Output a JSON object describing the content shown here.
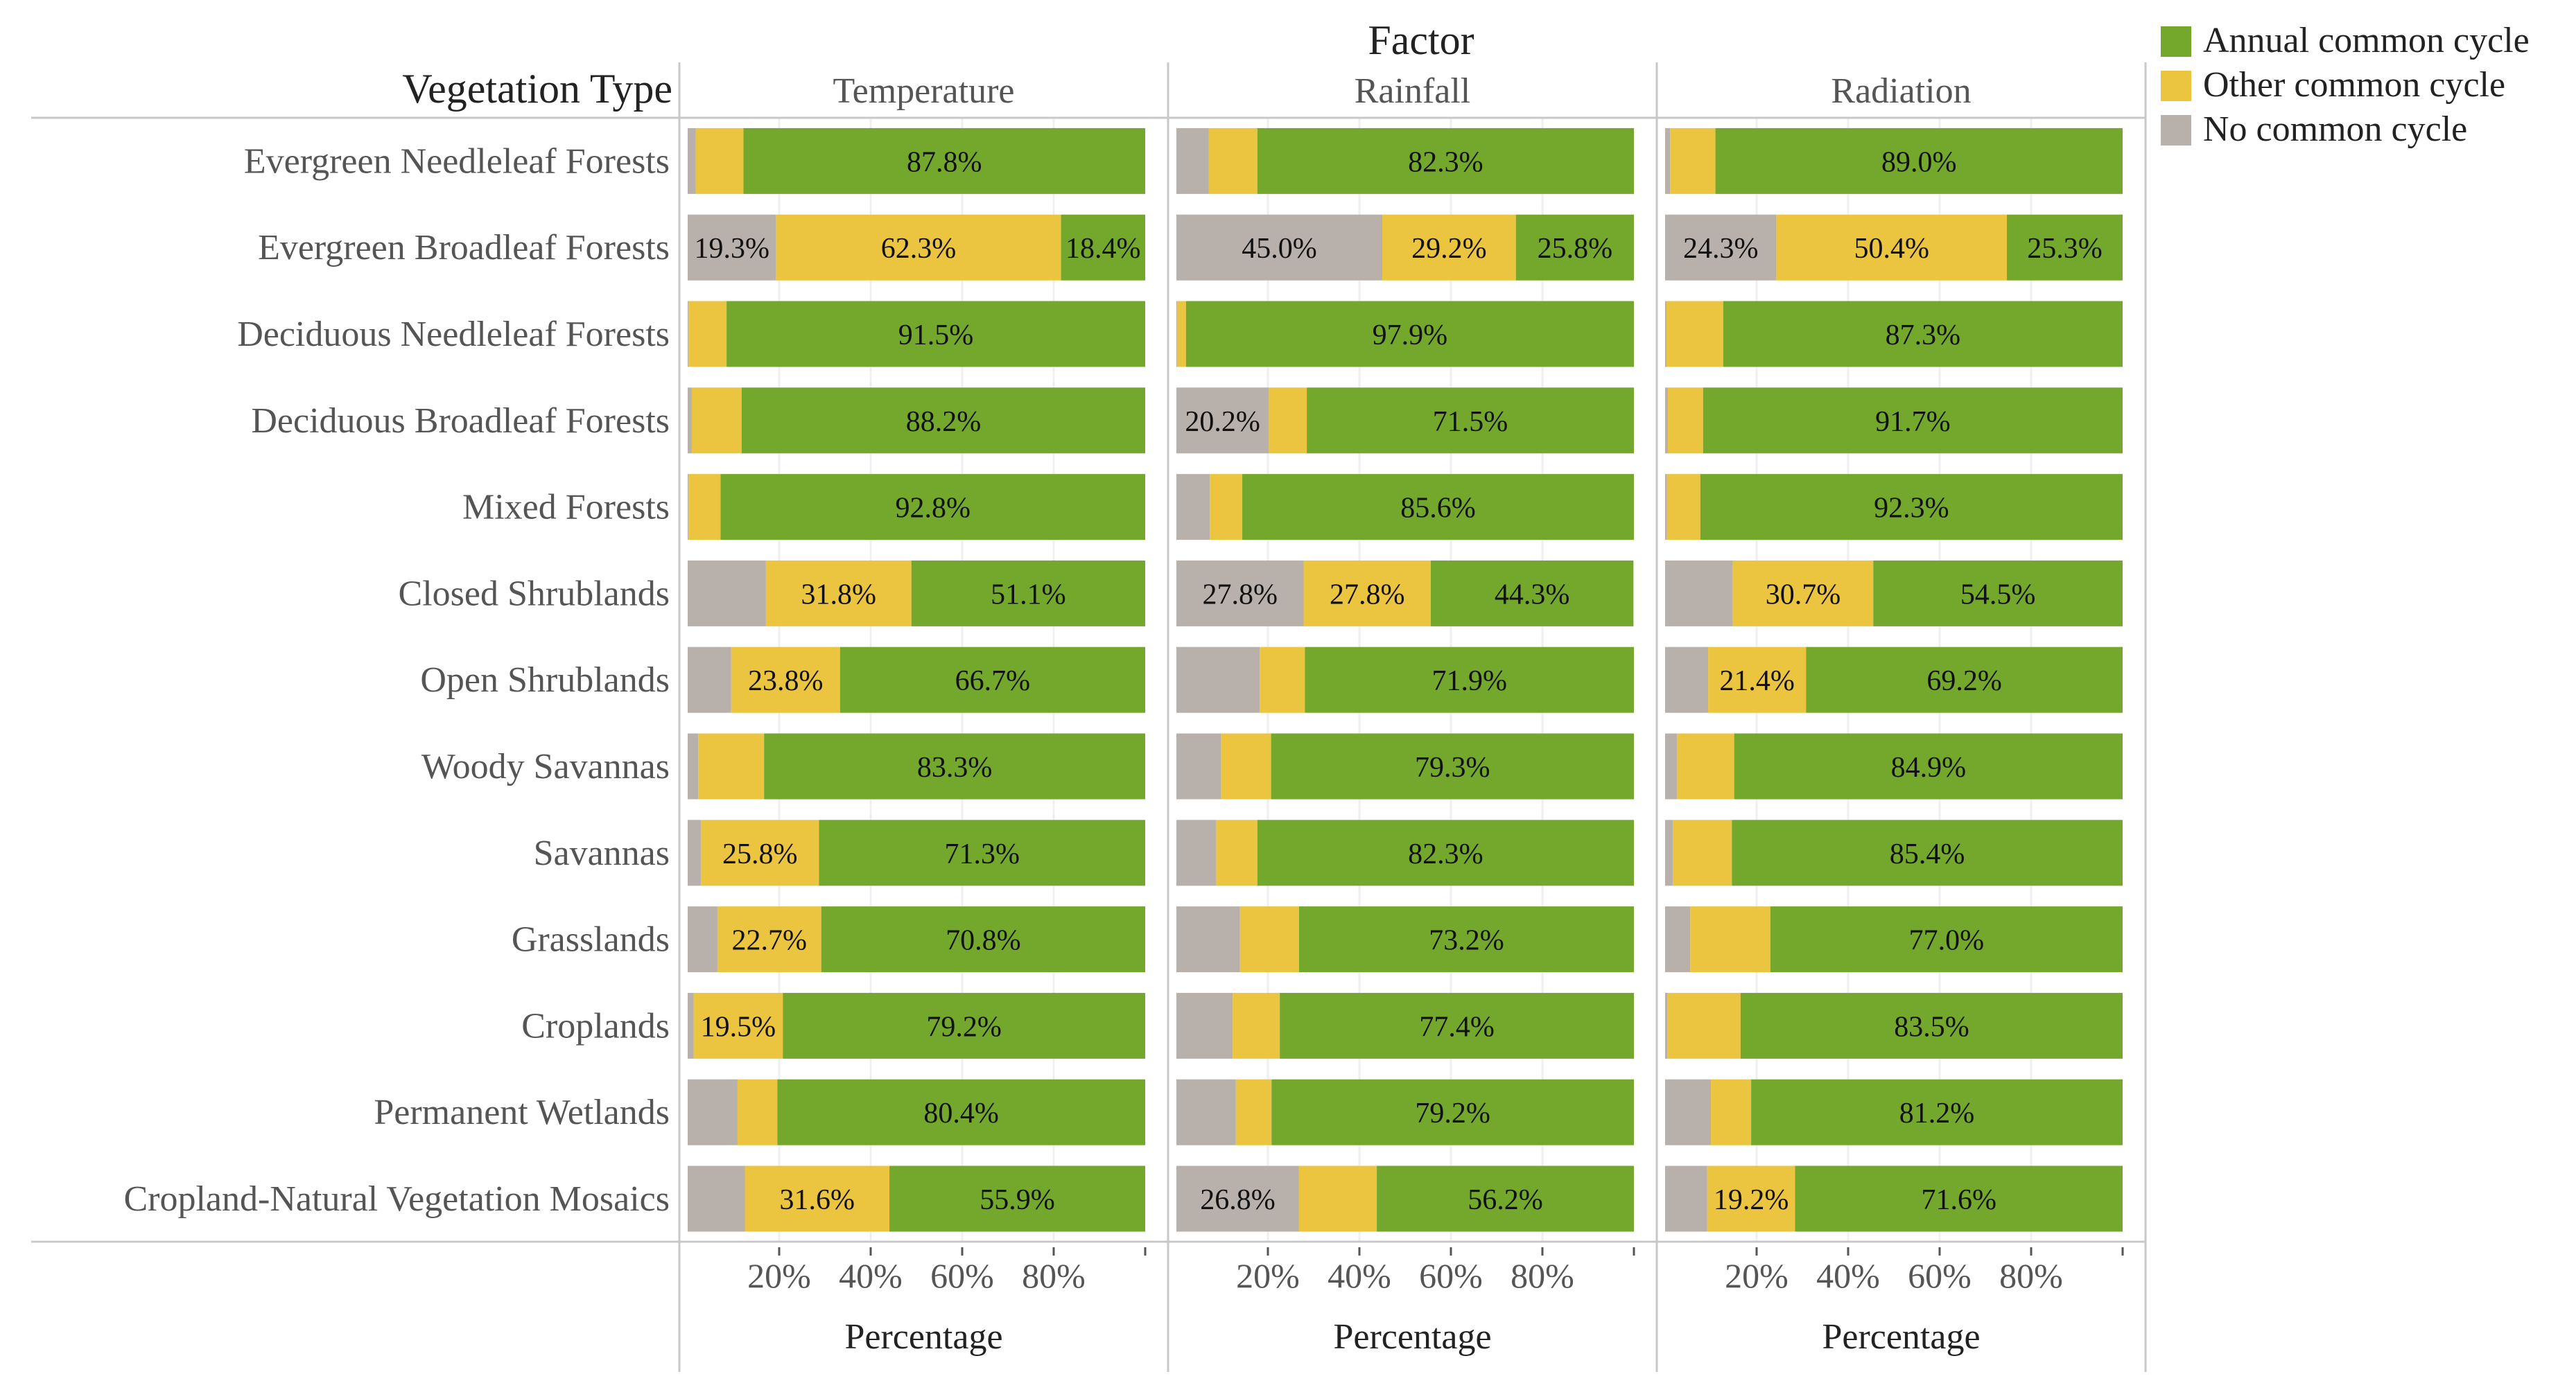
{
  "chart_data": {
    "type": "bar",
    "orientation": "horizontal-stacked",
    "title": "Factor",
    "row_header": "Vegetation Type",
    "xlabel": "Percentage",
    "xlim": [
      0,
      100
    ],
    "x_ticks": [
      "20%",
      "40%",
      "60%",
      "80%"
    ],
    "categories": [
      "Evergreen Needleleaf Forests",
      "Evergreen Broadleaf Forests",
      "Deciduous Needleleaf Forests",
      "Deciduous Broadleaf Forests",
      "Mixed Forests",
      "Closed Shrublands",
      "Open Shrublands",
      "Woody Savannas",
      "Savannas",
      "Grasslands",
      "Croplands",
      "Permanent Wetlands",
      "Cropland-Natural Vegetation Mosaics"
    ],
    "legend": {
      "position": "top-right",
      "items": [
        {
          "name": "Annual common cycle",
          "color": "#73a82d"
        },
        {
          "name": "Other common cycle",
          "color": "#ebc440"
        },
        {
          "name": "No common cycle",
          "color": "#b8b0aa"
        }
      ]
    },
    "stack_order": [
      "No common cycle",
      "Other common cycle",
      "Annual common cycle"
    ],
    "facets": [
      {
        "name": "Temperature",
        "series": [
          {
            "name": "No common cycle",
            "values": [
              1.8,
              19.3,
              0.2,
              0.9,
              0.2,
              17.1,
              9.5,
              2.3,
              2.9,
              6.5,
              1.3,
              10.9,
              12.5
            ]
          },
          {
            "name": "Other common cycle",
            "values": [
              10.4,
              62.3,
              8.3,
              10.9,
              7.0,
              31.8,
              23.8,
              14.4,
              25.8,
              22.7,
              19.5,
              8.7,
              31.6
            ]
          },
          {
            "name": "Annual common cycle",
            "values": [
              87.8,
              18.4,
              91.5,
              88.2,
              92.8,
              51.1,
              66.7,
              83.3,
              71.3,
              70.8,
              79.2,
              80.4,
              55.9
            ]
          }
        ],
        "labels": [
          {
            "row": 1,
            "series": "No common cycle",
            "text": "19.3%"
          },
          {
            "row": 0,
            "series": "Annual common cycle",
            "text": "87.8%"
          },
          {
            "row": 1,
            "series": "Other common cycle",
            "text": "62.3%"
          },
          {
            "row": 1,
            "series": "Annual common cycle",
            "text": "18.4%"
          },
          {
            "row": 2,
            "series": "Annual common cycle",
            "text": "91.5%"
          },
          {
            "row": 3,
            "series": "Annual common cycle",
            "text": "88.2%"
          },
          {
            "row": 4,
            "series": "Annual common cycle",
            "text": "92.8%"
          },
          {
            "row": 5,
            "series": "Other common cycle",
            "text": "31.8%"
          },
          {
            "row": 5,
            "series": "Annual common cycle",
            "text": "51.1%"
          },
          {
            "row": 6,
            "series": "Other common cycle",
            "text": "23.8%"
          },
          {
            "row": 6,
            "series": "Annual common cycle",
            "text": "66.7%"
          },
          {
            "row": 7,
            "series": "Annual common cycle",
            "text": "83.3%"
          },
          {
            "row": 8,
            "series": "Other common cycle",
            "text": "25.8%"
          },
          {
            "row": 8,
            "series": "Annual common cycle",
            "text": "71.3%"
          },
          {
            "row": 9,
            "series": "Other common cycle",
            "text": "22.7%"
          },
          {
            "row": 9,
            "series": "Annual common cycle",
            "text": "70.8%"
          },
          {
            "row": 10,
            "series": "Other common cycle",
            "text": "19.5%"
          },
          {
            "row": 10,
            "series": "Annual common cycle",
            "text": "79.2%"
          },
          {
            "row": 11,
            "series": "Annual common cycle",
            "text": "80.4%"
          },
          {
            "row": 12,
            "series": "Other common cycle",
            "text": "31.6%"
          },
          {
            "row": 12,
            "series": "Annual common cycle",
            "text": "55.9%"
          }
        ]
      },
      {
        "name": "Rainfall",
        "series": [
          {
            "name": "No common cycle",
            "values": [
              7.1,
              45.0,
              0.2,
              20.2,
              7.3,
              27.8,
              18.2,
              9.7,
              8.7,
              13.9,
              12.3,
              13.0,
              26.8
            ]
          },
          {
            "name": "Other common cycle",
            "values": [
              10.6,
              29.2,
              1.9,
              8.3,
              7.1,
              27.8,
              9.9,
              11.0,
              9.0,
              12.9,
              10.3,
              7.8,
              17.0
            ]
          },
          {
            "name": "Annual common cycle",
            "values": [
              82.3,
              25.8,
              97.9,
              71.5,
              85.6,
              44.3,
              71.9,
              79.3,
              82.3,
              73.2,
              77.4,
              79.2,
              56.2
            ]
          }
        ],
        "labels": [
          {
            "row": 0,
            "series": "Annual common cycle",
            "text": "82.3%"
          },
          {
            "row": 1,
            "series": "No common cycle",
            "text": "45.0%"
          },
          {
            "row": 1,
            "series": "Other common cycle",
            "text": "29.2%"
          },
          {
            "row": 1,
            "series": "Annual common cycle",
            "text": "25.8%"
          },
          {
            "row": 2,
            "series": "Annual common cycle",
            "text": "97.9%"
          },
          {
            "row": 3,
            "series": "No common cycle",
            "text": "20.2%"
          },
          {
            "row": 3,
            "series": "Annual common cycle",
            "text": "71.5%"
          },
          {
            "row": 4,
            "series": "Annual common cycle",
            "text": "85.6%"
          },
          {
            "row": 5,
            "series": "No common cycle",
            "text": "27.8%"
          },
          {
            "row": 5,
            "series": "Other common cycle",
            "text": "27.8%"
          },
          {
            "row": 5,
            "series": "Annual common cycle",
            "text": "44.3%"
          },
          {
            "row": 6,
            "series": "Annual common cycle",
            "text": "71.9%"
          },
          {
            "row": 7,
            "series": "Annual common cycle",
            "text": "79.3%"
          },
          {
            "row": 8,
            "series": "Annual common cycle",
            "text": "82.3%"
          },
          {
            "row": 9,
            "series": "Annual common cycle",
            "text": "73.2%"
          },
          {
            "row": 10,
            "series": "Annual common cycle",
            "text": "77.4%"
          },
          {
            "row": 11,
            "series": "Annual common cycle",
            "text": "79.2%"
          },
          {
            "row": 12,
            "series": "No common cycle",
            "text": "26.8%"
          },
          {
            "row": 12,
            "series": "Annual common cycle",
            "text": "56.2%"
          }
        ]
      },
      {
        "name": "Radiation",
        "series": [
          {
            "name": "No common cycle",
            "values": [
              1.1,
              24.3,
              0.3,
              0.6,
              0.4,
              14.8,
              9.4,
              2.6,
              1.7,
              5.5,
              0.5,
              10.0,
              9.2
            ]
          },
          {
            "name": "Other common cycle",
            "values": [
              9.9,
              50.4,
              12.4,
              7.7,
              7.3,
              30.7,
              21.4,
              12.5,
              12.9,
              17.5,
              16.0,
              8.8,
              19.2
            ]
          },
          {
            "name": "Annual common cycle",
            "values": [
              89.0,
              25.3,
              87.3,
              91.7,
              92.3,
              54.5,
              69.2,
              84.9,
              85.4,
              77.0,
              83.5,
              81.2,
              71.6
            ]
          }
        ],
        "labels": [
          {
            "row": 0,
            "series": "Annual common cycle",
            "text": "89.0%"
          },
          {
            "row": 1,
            "series": "No common cycle",
            "text": "24.3%"
          },
          {
            "row": 1,
            "series": "Other common cycle",
            "text": "50.4%"
          },
          {
            "row": 1,
            "series": "Annual common cycle",
            "text": "25.3%"
          },
          {
            "row": 2,
            "series": "Annual common cycle",
            "text": "87.3%"
          },
          {
            "row": 3,
            "series": "Annual common cycle",
            "text": "91.7%"
          },
          {
            "row": 4,
            "series": "Annual common cycle",
            "text": "92.3%"
          },
          {
            "row": 5,
            "series": "Other common cycle",
            "text": "30.7%"
          },
          {
            "row": 5,
            "series": "Annual common cycle",
            "text": "54.5%"
          },
          {
            "row": 6,
            "series": "Other common cycle",
            "text": "21.4%"
          },
          {
            "row": 6,
            "series": "Annual common cycle",
            "text": "69.2%"
          },
          {
            "row": 7,
            "series": "Annual common cycle",
            "text": "84.9%"
          },
          {
            "row": 8,
            "series": "Annual common cycle",
            "text": "85.4%"
          },
          {
            "row": 9,
            "series": "Annual common cycle",
            "text": "77.0%"
          },
          {
            "row": 10,
            "series": "Annual common cycle",
            "text": "83.5%"
          },
          {
            "row": 11,
            "series": "Annual common cycle",
            "text": "81.2%"
          },
          {
            "row": 12,
            "series": "Other common cycle",
            "text": "19.2%"
          },
          {
            "row": 12,
            "series": "Annual common cycle",
            "text": "71.6%"
          }
        ]
      }
    ]
  }
}
